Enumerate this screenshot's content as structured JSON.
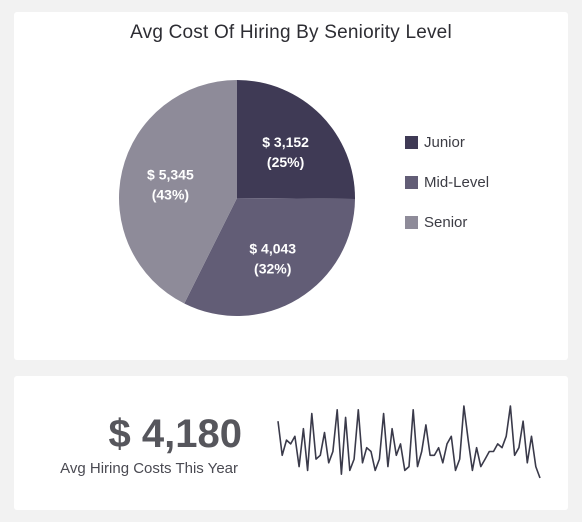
{
  "pie_card": {
    "title": "Avg Cost Of Hiring By Seniority Level"
  },
  "chart_data": [
    {
      "type": "pie",
      "title": "Avg Cost Of Hiring By Seniority Level",
      "slices": [
        {
          "name": "Junior",
          "value": 3152,
          "value_label": "$ 3,152",
          "percent_label": "(25%)",
          "color": "#3f3a55"
        },
        {
          "name": "Mid-Level",
          "value": 4043,
          "value_label": "$ 4,043",
          "percent_label": "(32%)",
          "color": "#625d76"
        },
        {
          "name": "Senior",
          "value": 5345,
          "value_label": "$ 5,345",
          "percent_label": "(43%)",
          "color": "#8e8b99"
        }
      ],
      "legend_position": "right"
    },
    {
      "type": "line",
      "title": "",
      "y": [
        12,
        30,
        22,
        24,
        20,
        36,
        16,
        38,
        8,
        32,
        30,
        18,
        34,
        28,
        6,
        40,
        10,
        38,
        32,
        6,
        34,
        26,
        28,
        38,
        32,
        8,
        36,
        16,
        30,
        24,
        38,
        36,
        6,
        36,
        28,
        14,
        30,
        30,
        26,
        34,
        24,
        20,
        38,
        32,
        4,
        22,
        38,
        26,
        36,
        32,
        28,
        28,
        24,
        26,
        20,
        4,
        30,
        26,
        12,
        34,
        20,
        36,
        42
      ],
      "color": "#3a3a4a"
    }
  ],
  "kpi": {
    "value": "$ 4,180",
    "caption": "Avg Hiring Costs This Year"
  }
}
